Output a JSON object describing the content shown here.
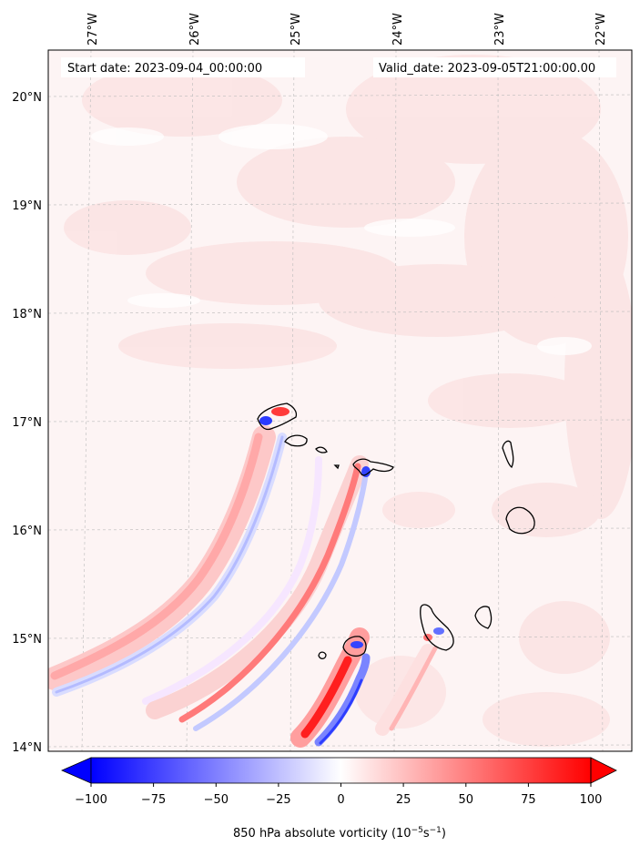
{
  "header": {
    "start_date": "Start date: 2023-09-04_00:00:00",
    "valid_date": "Valid_date: 2023-09-05T21:00:00.00"
  },
  "map": {
    "lon_labels": [
      "27°W",
      "26°W",
      "25°W",
      "24°W",
      "23°W",
      "22°W"
    ],
    "lat_labels": [
      "20°N",
      "19°N",
      "18°N",
      "17°N",
      "16°N",
      "15°N",
      "14°N"
    ]
  },
  "colorbar": {
    "tick_labels": [
      "−100",
      "−75",
      "−50",
      "−25",
      "0",
      "25",
      "50",
      "75",
      "100"
    ],
    "label_text": "850 hPa absolute vorticity (10",
    "label_exp1": "−5",
    "label_mid": "s",
    "label_exp2": "−1",
    "label_close": ")"
  }
}
